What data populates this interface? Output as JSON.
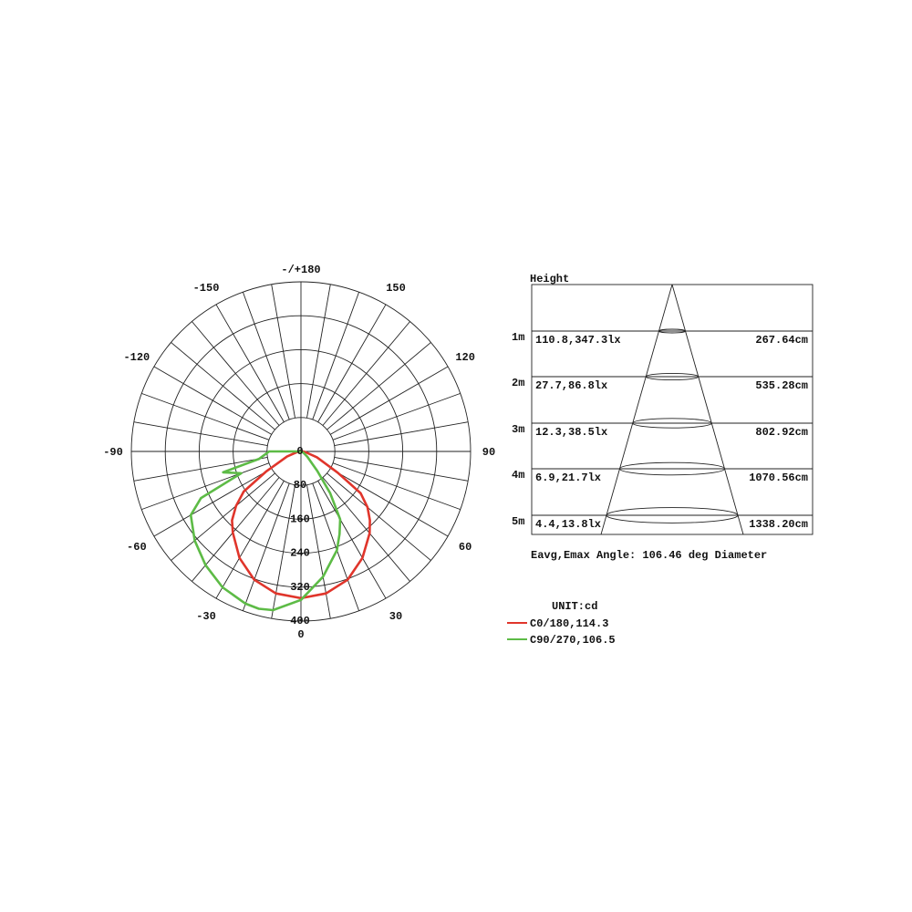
{
  "chart_data": {
    "type": "polar",
    "unit_label": "UNIT:cd",
    "radial_ticks": [
      "0",
      "80",
      "160",
      "240",
      "320",
      "400"
    ],
    "radial_values": [
      0,
      80,
      160,
      240,
      320,
      400
    ],
    "rlim": [
      0,
      400
    ],
    "angle_ticks": [
      {
        "value": 180,
        "label": "-/+180"
      },
      {
        "value": -150,
        "label": "-150"
      },
      {
        "value": 150,
        "label": "150"
      },
      {
        "value": -120,
        "label": "-120"
      },
      {
        "value": 120,
        "label": "120"
      },
      {
        "value": -90,
        "label": "-90"
      },
      {
        "value": 90,
        "label": "90"
      },
      {
        "value": -60,
        "label": "-60"
      },
      {
        "value": 60,
        "label": "60"
      },
      {
        "value": -30,
        "label": "-30"
      },
      {
        "value": 30,
        "label": "30"
      },
      {
        "value": 0,
        "label": "0"
      }
    ],
    "grid": true,
    "legend_placement": "bottom-right",
    "series": [
      {
        "name": "C0/180,114.3",
        "color": "#e0352b",
        "angles": [
          -90,
          -80,
          -70,
          -60,
          -55,
          -50,
          -45,
          -40,
          -30,
          -20,
          -10,
          0,
          10,
          20,
          30,
          40,
          45,
          50,
          55,
          60,
          70,
          80,
          90
        ],
        "values": [
          4,
          10,
          35,
          95,
          165,
          200,
          230,
          250,
          290,
          322,
          340,
          346,
          340,
          322,
          290,
          252,
          230,
          205,
          172,
          100,
          40,
          12,
          5
        ]
      },
      {
        "name": "C90/270,106.5",
        "color": "#5dbb46",
        "angles": [
          -90,
          -80,
          -75,
          -70,
          -65,
          -60,
          -50,
          -40,
          -30,
          -20,
          -15,
          -10,
          0,
          10,
          20,
          25,
          30,
          35,
          40,
          50,
          60,
          70,
          80,
          90
        ],
        "values": [
          75,
          100,
          190,
          150,
          260,
          300,
          327,
          350,
          370,
          382,
          384,
          380,
          350,
          300,
          248,
          215,
          185,
          120,
          60,
          20,
          8,
          4,
          2,
          0
        ]
      }
    ]
  },
  "cone": {
    "height_label": "Height",
    "rows": [
      {
        "height": "1m",
        "illuminance": "110.8,347.3lx",
        "diameter": "267.64cm"
      },
      {
        "height": "2m",
        "illuminance": "27.7,86.8lx",
        "diameter": "535.28cm"
      },
      {
        "height": "3m",
        "illuminance": "12.3,38.5lx",
        "diameter": "802.92cm"
      },
      {
        "height": "4m",
        "illuminance": "6.9,21.7lx",
        "diameter": "1070.56cm"
      },
      {
        "height": "5m",
        "illuminance": "4.4,13.8lx",
        "diameter": "1338.20cm"
      }
    ],
    "footer": "Eavg,Emax Angle: 106.46 deg Diameter"
  },
  "legend": {
    "unit": "UNIT:cd",
    "items": [
      {
        "label": "C0/180,114.3",
        "color": "#e0352b"
      },
      {
        "label": "C90/270,106.5",
        "color": "#5dbb46"
      }
    ]
  }
}
